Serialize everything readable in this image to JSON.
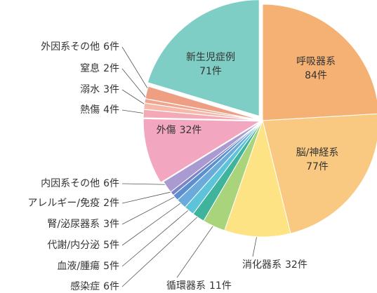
{
  "chart_data": {
    "type": "pie",
    "categories": [
      "呼吸器系",
      "脳/神経系",
      "消化器系",
      "循環器系",
      "感染症",
      "血液/腫瘍",
      "代謝/内分泌",
      "腎/泌尿器系",
      "アレルギー/免疫",
      "内因系その他",
      "外傷",
      "熱傷",
      "溺水",
      "窒息",
      "外因系その他",
      "新生児症例"
    ],
    "values": [
      84,
      77,
      32,
      11,
      6,
      5,
      5,
      3,
      2,
      6,
      32,
      4,
      3,
      2,
      6,
      71
    ],
    "value_labels": [
      "84件",
      "77件",
      "32件",
      "11件",
      "6件",
      "5件",
      "5件",
      "3件",
      "2件",
      "6件",
      "32件",
      "4件",
      "3件",
      "2件",
      "6件",
      "71件"
    ],
    "colors": [
      "#f5b173",
      "#f9c981",
      "#fde383",
      "#a9d47c",
      "#3fb39b",
      "#5cc3d9",
      "#6babdc",
      "#5b8fcf",
      "#7b84c6",
      "#a99bd1",
      "#f2a6c0",
      "#f4aab6",
      "#f5b8a9",
      "#f0a58d",
      "#ee9f83",
      "#7fcec5"
    ]
  }
}
